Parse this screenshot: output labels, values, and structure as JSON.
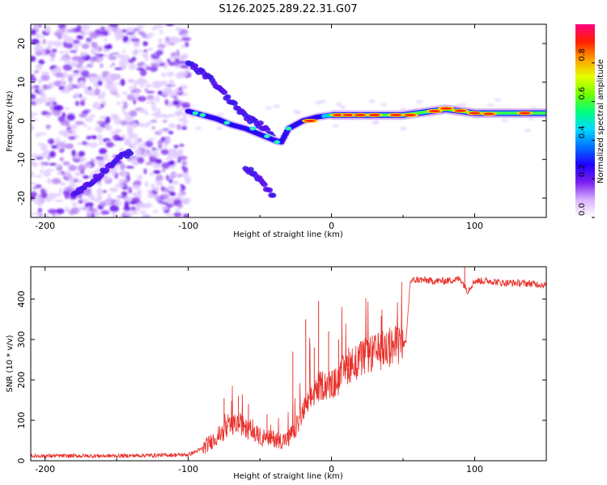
{
  "figure": {
    "title": "S126.2025.289.22.31.G07"
  },
  "chart_data": [
    {
      "type": "heatmap",
      "xlabel": "Height of straight line (km)",
      "ylabel": "Frequency (Hz)",
      "xlim": [
        -210,
        150
      ],
      "ylim": [
        -25,
        25
      ],
      "x_ticks": [
        -200,
        -100,
        0,
        100
      ],
      "x_tick_labels": [
        "-200",
        "-100",
        "0",
        "100"
      ],
      "y_ticks": [
        -20,
        -10,
        0,
        10,
        20
      ],
      "y_tick_labels": [
        "-20",
        "-10",
        "0",
        "10",
        "20"
      ],
      "colorbar": {
        "label": "Normalized spectral amplitude",
        "range": [
          0,
          1
        ],
        "ticks": [
          0.0,
          0.2,
          0.4,
          0.6,
          0.8
        ],
        "tick_labels": [
          "0.0",
          "0.2",
          "0.4",
          "0.6",
          "0.8"
        ],
        "colormap": [
          "#ffffff",
          "#d9b3ff",
          "#7a1ff0",
          "#2200ff",
          "#0070ff",
          "#00d8ff",
          "#00ff80",
          "#70ff00",
          "#e6ff00",
          "#ffa000",
          "#ff2000",
          "#ff0080"
        ]
      },
      "signal_track": [
        {
          "x": -100,
          "y": 2.5
        },
        {
          "x": -90,
          "y": 1.5
        },
        {
          "x": -80,
          "y": 0.5
        },
        {
          "x": -70,
          "y": -1
        },
        {
          "x": -60,
          "y": -2
        },
        {
          "x": -50,
          "y": -3.5
        },
        {
          "x": -40,
          "y": -5
        },
        {
          "x": -35,
          "y": -5.5
        },
        {
          "x": -30,
          "y": -2
        },
        {
          "x": -20,
          "y": 0
        },
        {
          "x": -10,
          "y": 1
        },
        {
          "x": 0,
          "y": 1.5
        },
        {
          "x": 20,
          "y": 1.5
        },
        {
          "x": 50,
          "y": 1.5
        },
        {
          "x": 80,
          "y": 3
        },
        {
          "x": 100,
          "y": 2
        },
        {
          "x": 150,
          "y": 2
        }
      ],
      "secondary_tracks": [
        [
          {
            "x": -100,
            "y": 15
          },
          {
            "x": -85,
            "y": 11
          },
          {
            "x": -70,
            "y": 5
          },
          {
            "x": -60,
            "y": 1
          },
          {
            "x": -50,
            "y": -1
          },
          {
            "x": -40,
            "y": -4
          }
        ],
        [
          {
            "x": -60,
            "y": -12
          },
          {
            "x": -50,
            "y": -15
          },
          {
            "x": -40,
            "y": -20
          }
        ],
        [
          {
            "x": -180,
            "y": -19
          },
          {
            "x": -165,
            "y": -15
          },
          {
            "x": -150,
            "y": -10
          },
          {
            "x": -140,
            "y": -8
          }
        ]
      ]
    },
    {
      "type": "line",
      "xlabel": "Height of straight line (km)",
      "ylabel": "SNR (10 * v/v)",
      "xlim": [
        -210,
        150
      ],
      "ylim": [
        0,
        480
      ],
      "x_ticks": [
        -200,
        -100,
        0,
        100
      ],
      "x_tick_labels": [
        "-200",
        "-100",
        "0",
        "100"
      ],
      "y_ticks": [
        0,
        100,
        200,
        300,
        400
      ],
      "y_tick_labels": [
        "0",
        "100",
        "200",
        "300",
        "400"
      ],
      "color": "#e8302a",
      "series": [
        {
          "x": [
            -210,
            -150,
            -100,
            -90,
            -80,
            -70,
            -65,
            -60,
            -50,
            -45,
            -40,
            -35,
            -30,
            -25,
            -20,
            -15,
            -10,
            -5,
            0,
            5,
            10,
            20,
            25,
            30,
            40,
            50,
            52,
            55,
            60,
            70,
            80,
            90,
            95,
            100,
            110,
            120,
            130,
            140,
            150
          ],
          "y": [
            12,
            12,
            15,
            30,
            60,
            85,
            95,
            80,
            60,
            55,
            55,
            50,
            55,
            80,
            120,
            150,
            180,
            190,
            185,
            200,
            230,
            250,
            260,
            265,
            280,
            290,
            290,
            445,
            448,
            445,
            445,
            450,
            420,
            445,
            445,
            440,
            440,
            438,
            435
          ],
          "spikes": [
            {
              "x": -75,
              "y": 155
            },
            {
              "x": -65,
              "y": 160
            },
            {
              "x": -58,
              "y": 140
            },
            {
              "x": -45,
              "y": 115
            },
            {
              "x": -27,
              "y": 270
            },
            {
              "x": -18,
              "y": 350
            },
            {
              "x": -12,
              "y": 280
            },
            {
              "x": -9,
              "y": 395
            },
            {
              "x": -2,
              "y": 320
            },
            {
              "x": 5,
              "y": 300
            },
            {
              "x": 12,
              "y": 280
            },
            {
              "x": 93,
              "y": 480
            }
          ]
        }
      ]
    }
  ]
}
